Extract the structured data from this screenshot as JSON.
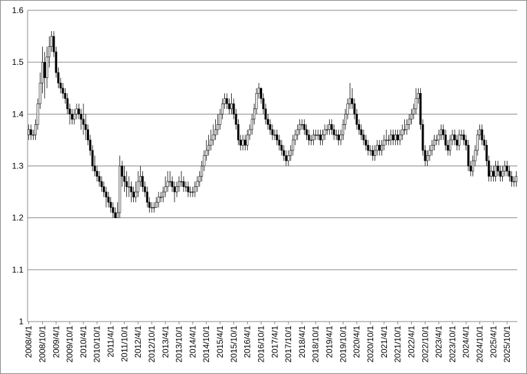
{
  "chart_data": {
    "type": "candlestick",
    "categories": [
      "2008/4/1",
      null,
      null,
      null,
      null,
      null,
      "2008/10/1",
      null,
      null,
      null,
      null,
      null,
      "2009/4/1",
      null,
      null,
      null,
      null,
      null,
      "2009/10/1",
      null,
      null,
      null,
      null,
      null,
      "2010/4/1",
      null,
      null,
      null,
      null,
      null,
      "2010/10/1",
      null,
      null,
      null,
      null,
      null,
      "2011/4/1",
      null,
      null,
      null,
      null,
      null,
      "2011/10/1",
      null,
      null,
      null,
      null,
      null,
      "2012/4/1",
      null,
      null,
      null,
      null,
      null,
      "2012/10/1",
      null,
      null,
      null,
      null,
      null,
      "2013/4/1",
      null,
      null,
      null,
      null,
      null,
      "2013/10/1",
      null,
      null,
      null,
      null,
      null,
      "2014/4/1",
      null,
      null,
      null,
      null,
      null,
      "2014/10/1",
      null,
      null,
      null,
      null,
      null,
      "2015/4/1",
      null,
      null,
      null,
      null,
      null,
      "2015/10/1",
      null,
      null,
      null,
      null,
      null,
      "2016/4/1",
      null,
      null,
      null,
      null,
      null,
      "2016/10/1",
      null,
      null,
      null,
      null,
      null,
      "2017/4/1",
      null,
      null,
      null,
      null,
      null,
      "2017/10/1",
      null,
      null,
      null,
      null,
      null,
      "2018/4/1",
      null,
      null,
      null,
      null,
      null,
      "2018/10/1",
      null,
      null,
      null,
      null,
      null,
      "2019/4/1",
      null,
      null,
      null,
      null,
      null,
      "2019/10/1",
      null,
      null,
      null,
      null,
      null,
      "2020/4/1",
      null,
      null,
      null,
      null,
      null,
      "2020/10/1",
      null,
      null,
      null,
      null,
      null,
      "2021/4/1",
      null,
      null,
      null,
      null,
      null,
      "2021/10/1",
      null,
      null,
      null,
      null,
      null,
      "2022/4/1",
      null,
      null,
      null,
      null,
      null,
      "2022/10/1",
      null,
      null,
      null,
      null,
      null,
      "2023/4/1",
      null,
      null,
      null,
      null,
      null,
      "2023/10/1",
      null,
      null,
      null,
      null,
      null,
      "2024/4/1",
      null,
      null,
      null,
      null,
      null,
      "2024/10/1",
      null,
      null,
      null,
      null,
      null,
      "2025/4/1",
      null,
      null,
      null,
      null,
      null,
      "2025/10/1",
      null,
      null,
      null,
      null
    ],
    "open": [
      1.36,
      1.37,
      1.36,
      1.36,
      1.38,
      1.42,
      1.46,
      1.5,
      1.47,
      1.51,
      1.53,
      1.55,
      1.52,
      1.48,
      1.46,
      1.45,
      1.44,
      1.43,
      1.41,
      1.4,
      1.39,
      1.4,
      1.41,
      1.4,
      1.39,
      1.38,
      1.37,
      1.35,
      1.33,
      1.3,
      1.29,
      1.28,
      1.27,
      1.26,
      1.25,
      1.24,
      1.23,
      1.22,
      1.21,
      1.2,
      1.21,
      1.3,
      1.28,
      1.27,
      1.26,
      1.26,
      1.25,
      1.24,
      1.25,
      1.27,
      1.28,
      1.26,
      1.25,
      1.23,
      1.22,
      1.22,
      1.22,
      1.23,
      1.24,
      1.24,
      1.25,
      1.26,
      1.27,
      1.27,
      1.26,
      1.25,
      1.26,
      1.27,
      1.27,
      1.26,
      1.26,
      1.25,
      1.25,
      1.25,
      1.26,
      1.27,
      1.28,
      1.3,
      1.32,
      1.33,
      1.34,
      1.35,
      1.36,
      1.37,
      1.38,
      1.4,
      1.42,
      1.43,
      1.42,
      1.41,
      1.42,
      1.4,
      1.38,
      1.35,
      1.34,
      1.35,
      1.34,
      1.36,
      1.37,
      1.39,
      1.41,
      1.44,
      1.45,
      1.43,
      1.41,
      1.39,
      1.38,
      1.37,
      1.36,
      1.36,
      1.35,
      1.34,
      1.33,
      1.32,
      1.31,
      1.32,
      1.33,
      1.35,
      1.36,
      1.37,
      1.38,
      1.38,
      1.37,
      1.36,
      1.35,
      1.35,
      1.36,
      1.36,
      1.36,
      1.35,
      1.36,
      1.37,
      1.37,
      1.38,
      1.37,
      1.36,
      1.36,
      1.35,
      1.36,
      1.38,
      1.4,
      1.42,
      1.43,
      1.42,
      1.4,
      1.38,
      1.37,
      1.36,
      1.35,
      1.34,
      1.33,
      1.33,
      1.32,
      1.33,
      1.34,
      1.33,
      1.34,
      1.35,
      1.35,
      1.35,
      1.36,
      1.35,
      1.36,
      1.35,
      1.36,
      1.37,
      1.37,
      1.38,
      1.39,
      1.4,
      1.41,
      1.43,
      1.44,
      1.38,
      1.33,
      1.31,
      1.32,
      1.33,
      1.34,
      1.35,
      1.35,
      1.36,
      1.37,
      1.36,
      1.34,
      1.33,
      1.35,
      1.36,
      1.35,
      1.34,
      1.36,
      1.36,
      1.35,
      1.34,
      1.3,
      1.29,
      1.31,
      1.33,
      1.36,
      1.37,
      1.35,
      1.34,
      1.31,
      1.28,
      1.29,
      1.28,
      1.3,
      1.29,
      1.28,
      1.29,
      1.3,
      1.29,
      1.28,
      1.27,
      1.27
    ],
    "high": [
      1.38,
      1.38,
      1.37,
      1.39,
      1.43,
      1.48,
      1.53,
      1.52,
      1.53,
      1.55,
      1.56,
      1.56,
      1.53,
      1.49,
      1.47,
      1.46,
      1.45,
      1.44,
      1.42,
      1.41,
      1.41,
      1.42,
      1.42,
      1.41,
      1.42,
      1.4,
      1.38,
      1.36,
      1.34,
      1.32,
      1.3,
      1.29,
      1.28,
      1.27,
      1.26,
      1.25,
      1.24,
      1.23,
      1.22,
      1.23,
      1.32,
      1.31,
      1.3,
      1.29,
      1.28,
      1.27,
      1.26,
      1.27,
      1.29,
      1.3,
      1.29,
      1.27,
      1.26,
      1.24,
      1.23,
      1.23,
      1.24,
      1.25,
      1.25,
      1.26,
      1.28,
      1.29,
      1.29,
      1.28,
      1.27,
      1.27,
      1.28,
      1.29,
      1.28,
      1.27,
      1.27,
      1.26,
      1.26,
      1.27,
      1.28,
      1.29,
      1.31,
      1.33,
      1.35,
      1.36,
      1.37,
      1.38,
      1.39,
      1.4,
      1.41,
      1.43,
      1.44,
      1.44,
      1.43,
      1.44,
      1.43,
      1.41,
      1.39,
      1.36,
      1.36,
      1.36,
      1.37,
      1.38,
      1.4,
      1.42,
      1.45,
      1.46,
      1.45,
      1.44,
      1.42,
      1.4,
      1.39,
      1.38,
      1.37,
      1.37,
      1.36,
      1.35,
      1.34,
      1.33,
      1.33,
      1.34,
      1.36,
      1.37,
      1.38,
      1.39,
      1.39,
      1.39,
      1.38,
      1.37,
      1.36,
      1.37,
      1.37,
      1.37,
      1.37,
      1.37,
      1.38,
      1.38,
      1.39,
      1.39,
      1.38,
      1.37,
      1.37,
      1.37,
      1.39,
      1.41,
      1.43,
      1.46,
      1.45,
      1.43,
      1.41,
      1.39,
      1.38,
      1.37,
      1.36,
      1.35,
      1.34,
      1.34,
      1.34,
      1.35,
      1.35,
      1.35,
      1.36,
      1.37,
      1.36,
      1.37,
      1.37,
      1.37,
      1.37,
      1.37,
      1.38,
      1.39,
      1.39,
      1.4,
      1.41,
      1.42,
      1.45,
      1.45,
      1.45,
      1.39,
      1.34,
      1.33,
      1.34,
      1.35,
      1.36,
      1.36,
      1.37,
      1.38,
      1.38,
      1.37,
      1.35,
      1.36,
      1.37,
      1.37,
      1.36,
      1.37,
      1.37,
      1.37,
      1.36,
      1.35,
      1.31,
      1.32,
      1.34,
      1.37,
      1.38,
      1.38,
      1.36,
      1.35,
      1.32,
      1.3,
      1.3,
      1.31,
      1.31,
      1.3,
      1.3,
      1.31,
      1.31,
      1.3,
      1.29,
      1.28,
      1.29
    ],
    "low": [
      1.35,
      1.35,
      1.35,
      1.35,
      1.37,
      1.41,
      1.44,
      1.43,
      1.45,
      1.49,
      1.52,
      1.51,
      1.47,
      1.45,
      1.44,
      1.43,
      1.42,
      1.4,
      1.38,
      1.38,
      1.38,
      1.39,
      1.39,
      1.37,
      1.36,
      1.35,
      1.34,
      1.32,
      1.29,
      1.28,
      1.27,
      1.26,
      1.25,
      1.24,
      1.22,
      1.22,
      1.21,
      1.2,
      1.2,
      1.2,
      1.2,
      1.26,
      1.25,
      1.24,
      1.24,
      1.23,
      1.23,
      1.23,
      1.24,
      1.26,
      1.25,
      1.24,
      1.22,
      1.21,
      1.21,
      1.21,
      1.22,
      1.22,
      1.23,
      1.23,
      1.24,
      1.25,
      1.26,
      1.25,
      1.23,
      1.24,
      1.25,
      1.26,
      1.25,
      1.25,
      1.24,
      1.24,
      1.24,
      1.24,
      1.25,
      1.26,
      1.27,
      1.29,
      1.31,
      1.32,
      1.33,
      1.34,
      1.35,
      1.36,
      1.37,
      1.39,
      1.41,
      1.41,
      1.4,
      1.4,
      1.39,
      1.37,
      1.34,
      1.33,
      1.33,
      1.33,
      1.33,
      1.35,
      1.36,
      1.38,
      1.4,
      1.43,
      1.42,
      1.4,
      1.38,
      1.37,
      1.36,
      1.35,
      1.35,
      1.34,
      1.33,
      1.32,
      1.31,
      1.3,
      1.3,
      1.31,
      1.32,
      1.34,
      1.35,
      1.36,
      1.37,
      1.36,
      1.35,
      1.34,
      1.34,
      1.34,
      1.35,
      1.35,
      1.34,
      1.34,
      1.35,
      1.36,
      1.36,
      1.36,
      1.35,
      1.35,
      1.34,
      1.34,
      1.35,
      1.37,
      1.39,
      1.41,
      1.41,
      1.39,
      1.37,
      1.36,
      1.35,
      1.34,
      1.33,
      1.32,
      1.32,
      1.31,
      1.31,
      1.32,
      1.32,
      1.32,
      1.33,
      1.34,
      1.34,
      1.34,
      1.34,
      1.34,
      1.34,
      1.34,
      1.35,
      1.36,
      1.36,
      1.37,
      1.38,
      1.39,
      1.4,
      1.42,
      1.37,
      1.32,
      1.3,
      1.3,
      1.31,
      1.32,
      1.33,
      1.34,
      1.34,
      1.35,
      1.35,
      1.33,
      1.32,
      1.32,
      1.34,
      1.34,
      1.33,
      1.33,
      1.35,
      1.34,
      1.33,
      1.29,
      1.28,
      1.28,
      1.3,
      1.32,
      1.35,
      1.34,
      1.33,
      1.3,
      1.27,
      1.27,
      1.27,
      1.27,
      1.28,
      1.27,
      1.27,
      1.28,
      1.28,
      1.27,
      1.26,
      1.26,
      1.26
    ],
    "close": [
      1.37,
      1.36,
      1.36,
      1.38,
      1.42,
      1.46,
      1.5,
      1.47,
      1.51,
      1.53,
      1.55,
      1.52,
      1.48,
      1.46,
      1.45,
      1.44,
      1.43,
      1.41,
      1.4,
      1.39,
      1.4,
      1.41,
      1.4,
      1.39,
      1.38,
      1.37,
      1.35,
      1.33,
      1.3,
      1.29,
      1.28,
      1.27,
      1.26,
      1.25,
      1.24,
      1.23,
      1.22,
      1.21,
      1.2,
      1.21,
      1.3,
      1.28,
      1.27,
      1.26,
      1.26,
      1.25,
      1.24,
      1.25,
      1.27,
      1.28,
      1.26,
      1.25,
      1.23,
      1.22,
      1.22,
      1.22,
      1.23,
      1.24,
      1.24,
      1.25,
      1.26,
      1.27,
      1.27,
      1.26,
      1.25,
      1.26,
      1.27,
      1.27,
      1.26,
      1.26,
      1.25,
      1.25,
      1.25,
      1.26,
      1.27,
      1.28,
      1.3,
      1.32,
      1.33,
      1.34,
      1.35,
      1.36,
      1.37,
      1.38,
      1.4,
      1.42,
      1.43,
      1.42,
      1.41,
      1.42,
      1.4,
      1.38,
      1.35,
      1.34,
      1.35,
      1.34,
      1.36,
      1.37,
      1.39,
      1.41,
      1.44,
      1.45,
      1.43,
      1.41,
      1.39,
      1.38,
      1.37,
      1.36,
      1.36,
      1.35,
      1.34,
      1.33,
      1.32,
      1.31,
      1.32,
      1.33,
      1.35,
      1.36,
      1.37,
      1.38,
      1.38,
      1.37,
      1.36,
      1.35,
      1.35,
      1.36,
      1.36,
      1.36,
      1.35,
      1.36,
      1.37,
      1.37,
      1.38,
      1.37,
      1.36,
      1.36,
      1.35,
      1.36,
      1.38,
      1.4,
      1.42,
      1.43,
      1.42,
      1.4,
      1.38,
      1.37,
      1.36,
      1.35,
      1.34,
      1.33,
      1.33,
      1.32,
      1.33,
      1.34,
      1.33,
      1.34,
      1.35,
      1.35,
      1.35,
      1.36,
      1.35,
      1.36,
      1.35,
      1.36,
      1.37,
      1.37,
      1.38,
      1.39,
      1.4,
      1.41,
      1.43,
      1.44,
      1.38,
      1.33,
      1.31,
      1.32,
      1.33,
      1.34,
      1.35,
      1.35,
      1.36,
      1.37,
      1.36,
      1.34,
      1.33,
      1.35,
      1.36,
      1.35,
      1.34,
      1.36,
      1.36,
      1.35,
      1.34,
      1.3,
      1.29,
      1.31,
      1.33,
      1.36,
      1.37,
      1.35,
      1.34,
      1.31,
      1.28,
      1.29,
      1.28,
      1.3,
      1.29,
      1.28,
      1.29,
      1.3,
      1.29,
      1.28,
      1.27,
      1.27,
      1.28
    ],
    "ylim": [
      1,
      1.6
    ],
    "yticks": [
      1,
      1.1,
      1.2,
      1.3,
      1.4,
      1.5,
      1.6
    ],
    "grid": true,
    "up_color": "#ffffff",
    "down_color": "#000000"
  }
}
